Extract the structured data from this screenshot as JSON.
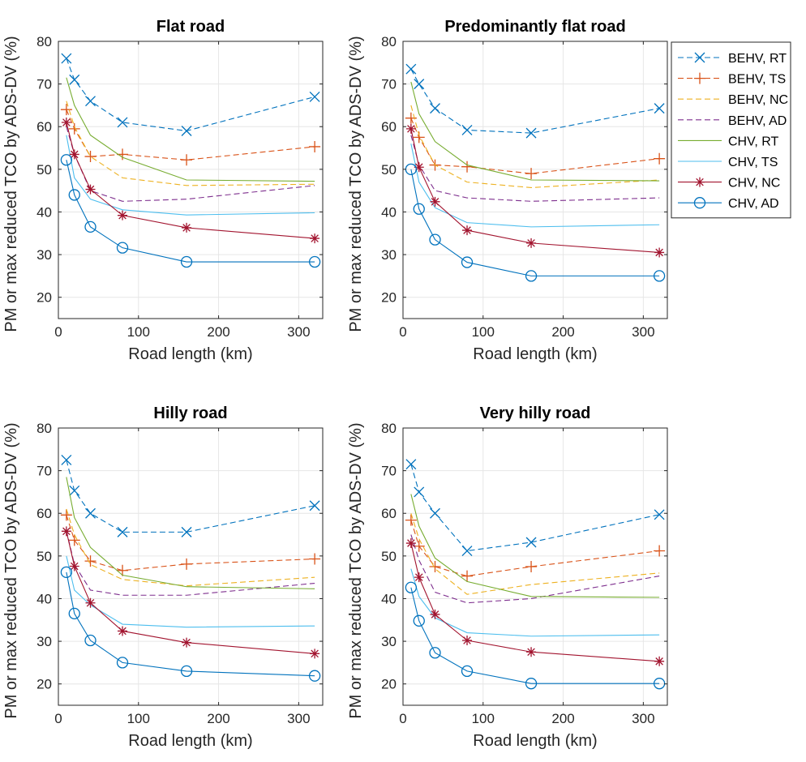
{
  "chart_data": [
    {
      "type": "line",
      "title": "Flat road",
      "xlabel": "Road length (km)",
      "ylabel": "PM or max reduced TCO by ADS-DV (%)",
      "xlim": [
        0,
        330
      ],
      "ylim": [
        15,
        80
      ],
      "xticks": [
        0,
        100,
        200,
        300
      ],
      "yticks": [
        20,
        30,
        40,
        50,
        60,
        70,
        80
      ],
      "grid": true,
      "x": [
        10,
        20,
        40,
        80,
        160,
        320
      ],
      "series": [
        {
          "name": "BEHV, RT",
          "values": [
            76,
            71,
            66,
            61,
            59,
            67
          ]
        },
        {
          "name": "BEHV, TS",
          "values": [
            64,
            59.5,
            53,
            53.5,
            52.2,
            55.3
          ]
        },
        {
          "name": "BEHV, NC",
          "values": [
            66,
            60,
            53,
            48,
            46.2,
            46.5
          ]
        },
        {
          "name": "BEHV, AD",
          "values": [
            60,
            53.5,
            45,
            42.5,
            43,
            46.2
          ]
        },
        {
          "name": "CHV, RT",
          "values": [
            71.5,
            65,
            58,
            52.8,
            47.5,
            47.2
          ]
        },
        {
          "name": "CHV, TS",
          "values": [
            58,
            48,
            43,
            40.5,
            39.3,
            39.8
          ]
        },
        {
          "name": "CHV, NC",
          "values": [
            61,
            53.5,
            45.3,
            39.2,
            36.3,
            33.8
          ]
        },
        {
          "name": "CHV, AD",
          "values": [
            52.2,
            44,
            36.5,
            31.6,
            28.3,
            28.3
          ]
        }
      ]
    },
    {
      "type": "line",
      "title": "Predominantly flat road",
      "xlabel": "Road length (km)",
      "ylabel": "PM or max reduced TCO by ADS-DV (%)",
      "xlim": [
        0,
        330
      ],
      "ylim": [
        15,
        80
      ],
      "xticks": [
        0,
        100,
        200,
        300
      ],
      "yticks": [
        20,
        30,
        40,
        50,
        60,
        70,
        80
      ],
      "grid": true,
      "x": [
        10,
        20,
        40,
        80,
        160,
        320
      ],
      "series": [
        {
          "name": "BEHV, RT",
          "values": [
            73.5,
            70,
            64.3,
            59.2,
            58.5,
            64.3
          ]
        },
        {
          "name": "BEHV, TS",
          "values": [
            62,
            57.5,
            51,
            50.6,
            49,
            52.5
          ]
        },
        {
          "name": "BEHV, NC",
          "values": [
            65,
            58,
            51,
            47,
            45.7,
            47.5
          ]
        },
        {
          "name": "BEHV, AD",
          "values": [
            58,
            51,
            45,
            43.3,
            42.5,
            43.3
          ]
        },
        {
          "name": "CHV, RT",
          "values": [
            70.5,
            63,
            56.5,
            51,
            47.5,
            47.3
          ]
        },
        {
          "name": "CHV, TS",
          "values": [
            56,
            47,
            41,
            37.5,
            36.5,
            37
          ]
        },
        {
          "name": "CHV, NC",
          "values": [
            59.5,
            50.5,
            42.4,
            35.7,
            32.7,
            30.5
          ]
        },
        {
          "name": "CHV, AD",
          "values": [
            50,
            40.7,
            33.5,
            28.2,
            25,
            25
          ]
        }
      ]
    },
    {
      "type": "line",
      "title": "Hilly road",
      "xlabel": "Road length (km)",
      "ylabel": "PM or max reduced TCO by ADS-DV (%)",
      "xlim": [
        0,
        330
      ],
      "ylim": [
        15,
        80
      ],
      "xticks": [
        0,
        100,
        200,
        300
      ],
      "yticks": [
        20,
        30,
        40,
        50,
        60,
        70,
        80
      ],
      "grid": true,
      "x": [
        10,
        20,
        40,
        80,
        160,
        320
      ],
      "series": [
        {
          "name": "BEHV, RT",
          "values": [
            72.5,
            65.3,
            60,
            55.6,
            55.6,
            61.8
          ]
        },
        {
          "name": "BEHV, TS",
          "values": [
            59.6,
            53.7,
            48.8,
            46.6,
            48.1,
            49.3
          ]
        },
        {
          "name": "BEHV, NC",
          "values": [
            61,
            55,
            48,
            44.5,
            43,
            45
          ]
        },
        {
          "name": "BEHV, AD",
          "values": [
            56,
            48,
            42,
            40.8,
            40.8,
            43.6
          ]
        },
        {
          "name": "CHV, RT",
          "values": [
            68.5,
            59,
            52,
            45.5,
            42.8,
            42.3
          ]
        },
        {
          "name": "CHV, TS",
          "values": [
            50,
            42,
            38.5,
            34,
            33.3,
            33.6
          ]
        },
        {
          "name": "CHV, NC",
          "values": [
            55.8,
            47.6,
            39,
            32.4,
            29.7,
            27.1
          ]
        },
        {
          "name": "CHV, AD",
          "values": [
            46.2,
            36.5,
            30.2,
            25,
            23,
            21.9
          ]
        }
      ]
    },
    {
      "type": "line",
      "title": "Very hilly road",
      "xlabel": "Road length (km)",
      "ylabel": "PM or max reduced TCO by ADS-DV (%)",
      "xlim": [
        0,
        330
      ],
      "ylim": [
        15,
        80
      ],
      "xticks": [
        0,
        100,
        200,
        300
      ],
      "yticks": [
        20,
        30,
        40,
        50,
        60,
        70,
        80
      ],
      "grid": true,
      "x": [
        10,
        20,
        40,
        80,
        160,
        320
      ],
      "series": [
        {
          "name": "BEHV, RT",
          "values": [
            71.5,
            65,
            60,
            51.2,
            53.2,
            59.7
          ]
        },
        {
          "name": "BEHV, TS",
          "values": [
            58.4,
            52.3,
            47.5,
            45.3,
            47.5,
            51.2
          ]
        },
        {
          "name": "BEHV, NC",
          "values": [
            60,
            54,
            47,
            41,
            43.3,
            46
          ]
        },
        {
          "name": "BEHV, AD",
          "values": [
            55,
            49,
            41.5,
            39,
            40,
            45.3
          ]
        },
        {
          "name": "CHV, RT",
          "values": [
            64.5,
            57,
            49.5,
            44,
            40.5,
            40.3
          ]
        },
        {
          "name": "CHV, TS",
          "values": [
            47,
            40.5,
            35.5,
            32,
            31.2,
            31.5
          ]
        },
        {
          "name": "CHV, NC",
          "values": [
            53,
            45,
            36.3,
            30.2,
            27.5,
            25.3
          ]
        },
        {
          "name": "CHV, AD",
          "values": [
            42.6,
            34.8,
            27.3,
            23,
            20.1,
            20.1
          ]
        }
      ]
    }
  ],
  "legend": {
    "placement": "right",
    "entries": [
      {
        "label": "BEHV, RT",
        "color": "#0072BD",
        "dash": "dashed",
        "marker": "x"
      },
      {
        "label": "BEHV, TS",
        "color": "#D95319",
        "dash": "dashed",
        "marker": "plus"
      },
      {
        "label": "BEHV, NC",
        "color": "#EDB120",
        "dash": "dashed",
        "marker": "none"
      },
      {
        "label": "BEHV, AD",
        "color": "#7E2F8E",
        "dash": "dashed",
        "marker": "none"
      },
      {
        "label": "CHV, RT",
        "color": "#77AC30",
        "dash": "solid",
        "marker": "none"
      },
      {
        "label": "CHV, TS",
        "color": "#4DBEEE",
        "dash": "solid",
        "marker": "none"
      },
      {
        "label": "CHV, NC",
        "color": "#A2142F",
        "dash": "solid",
        "marker": "asterisk"
      },
      {
        "label": "CHV, AD",
        "color": "#0072BD",
        "dash": "solid",
        "marker": "circle"
      }
    ]
  }
}
